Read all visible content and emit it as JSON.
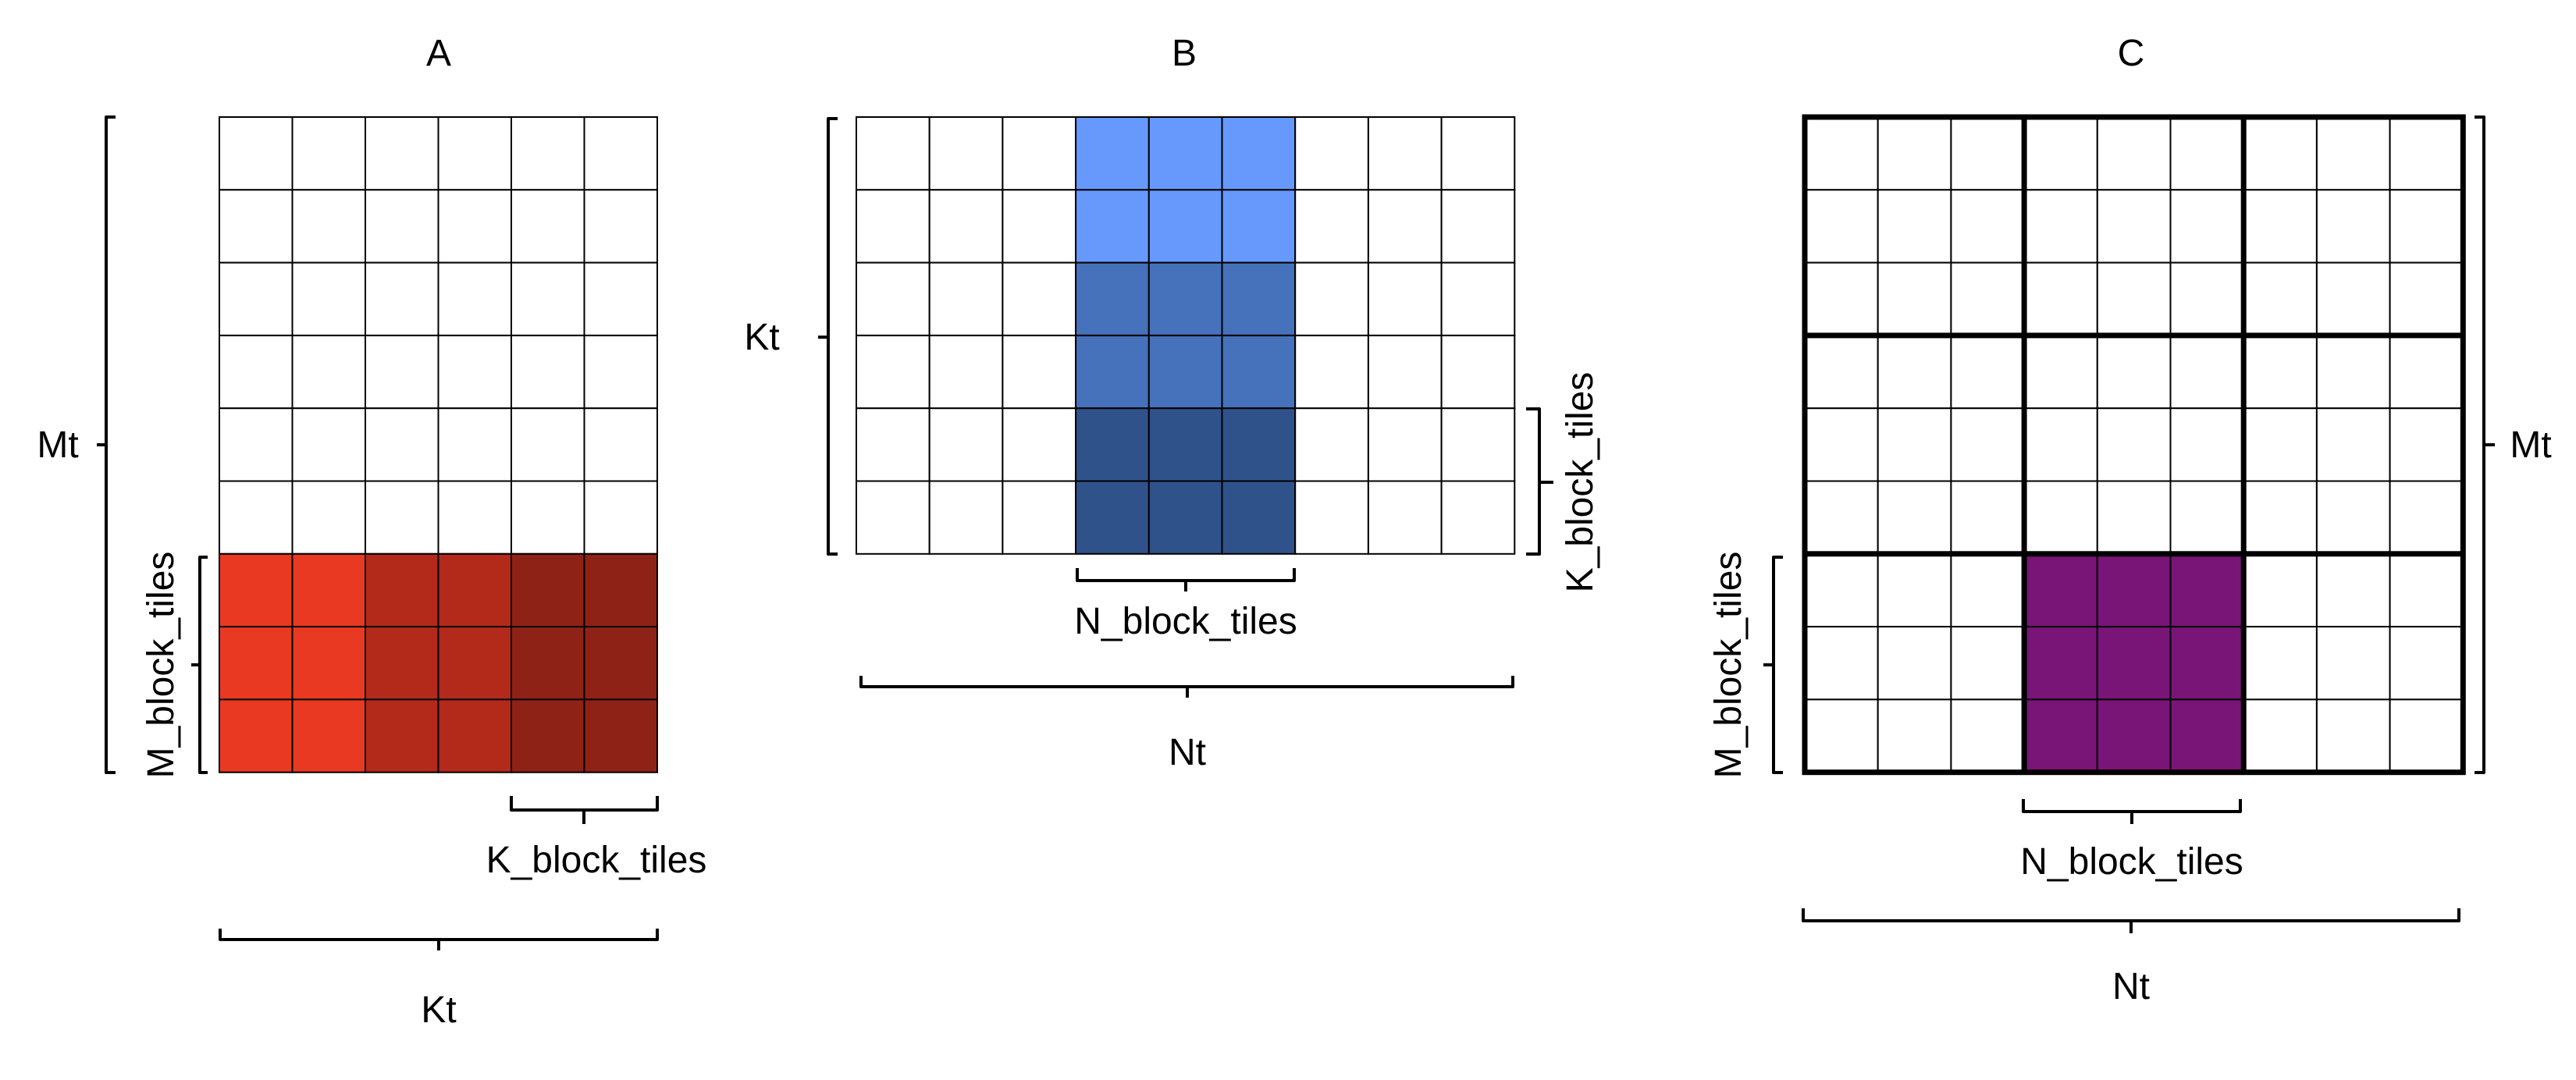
{
  "matrices": {
    "A": {
      "title": "A",
      "rows": 9,
      "cols": 6,
      "row_label": "Mt",
      "col_label": "Kt",
      "block_rows_label": "M_block_tiles",
      "block_cols_label": "K_block_tiles",
      "highlight": {
        "row_start": 6,
        "row_end": 9,
        "col_groups": [
          {
            "col_start": 0,
            "col_end": 2,
            "color": "#e93922"
          },
          {
            "col_start": 2,
            "col_end": 4,
            "color": "#b32a1b"
          },
          {
            "col_start": 4,
            "col_end": 6,
            "color": "#8f2216"
          }
        ]
      }
    },
    "B": {
      "title": "B",
      "rows": 6,
      "cols": 9,
      "row_label": "Kt",
      "col_label": "Nt",
      "block_rows_label": "K_block_tiles",
      "block_cols_label": "N_block_tiles",
      "highlight": {
        "col_start": 3,
        "col_end": 6,
        "row_groups": [
          {
            "row_start": 0,
            "row_end": 2,
            "color": "#6699fb"
          },
          {
            "row_start": 2,
            "row_end": 4,
            "color": "#4671bb"
          },
          {
            "row_start": 4,
            "row_end": 6,
            "color": "#30528b"
          }
        ]
      }
    },
    "C": {
      "title": "C",
      "rows": 9,
      "cols": 9,
      "row_label": "Mt",
      "col_label": "Nt",
      "block_rows_label": "M_block_tiles",
      "block_cols_label": "N_block_tiles",
      "block_size": 3,
      "highlight": {
        "row_start": 6,
        "row_end": 9,
        "col_start": 3,
        "col_end": 6,
        "color": "#781577"
      }
    }
  }
}
